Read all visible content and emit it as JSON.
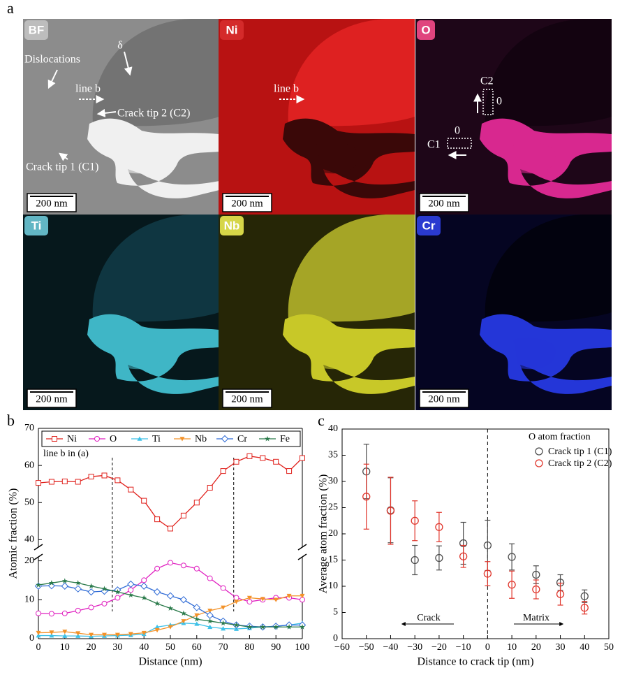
{
  "panel_labels": [
    "a",
    "b",
    "c"
  ],
  "micrographs": [
    {
      "label": "BF",
      "scale_bar": "200 nm",
      "annotations": [
        "Dislocations",
        "δ",
        "line b",
        "Crack tip 2 (C2)",
        "Crack tip 1 (C1)"
      ]
    },
    {
      "label": "Ni",
      "scale_bar": "200 nm",
      "annotations": [
        "line b"
      ]
    },
    {
      "label": "O",
      "scale_bar": "200 nm",
      "annotations": [
        "C2",
        "0",
        "0",
        "C1"
      ]
    },
    {
      "label": "Ti",
      "scale_bar": "200 nm"
    },
    {
      "label": "Nb",
      "scale_bar": "200 nm"
    },
    {
      "label": "Cr",
      "scale_bar": "200 nm"
    }
  ],
  "chart_data": [
    {
      "type": "line",
      "annotation": "line b in (a)",
      "xlabel": "Distance (nm)",
      "ylabel": "Atomic fraction (%)",
      "x": [
        0,
        5,
        10,
        15,
        20,
        25,
        30,
        35,
        40,
        45,
        50,
        55,
        60,
        65,
        70,
        75,
        80,
        85,
        90,
        95,
        100
      ],
      "xlim": [
        0,
        100
      ],
      "xticks": [
        0,
        10,
        20,
        30,
        40,
        50,
        60,
        70,
        80,
        90,
        100
      ],
      "ylim": [
        0,
        70
      ],
      "ybreak": [
        21,
        38
      ],
      "yticks": [
        0,
        10,
        20,
        40,
        50,
        60,
        70
      ],
      "reference_lines": [
        28,
        74
      ],
      "legend": "top",
      "series": [
        {
          "name": "Ni",
          "color": "#e0201b",
          "marker": "square",
          "values": [
            55.3,
            55.6,
            55.7,
            55.6,
            57.0,
            57.3,
            56.0,
            53.5,
            50.5,
            45.5,
            43.0,
            46.5,
            50.0,
            54.0,
            58.5,
            61.0,
            62.5,
            62.0,
            61.0,
            58.5,
            62.0
          ]
        },
        {
          "name": "O",
          "color": "#e020c0",
          "marker": "circle",
          "values": [
            6.5,
            6.4,
            6.5,
            7.2,
            8.0,
            9.0,
            10.5,
            12.5,
            15.0,
            18.0,
            19.5,
            18.8,
            18.0,
            15.5,
            13.0,
            10.5,
            9.5,
            10.0,
            10.5,
            10.5,
            10.0
          ]
        },
        {
          "name": "Ti",
          "color": "#3ec1e8",
          "marker": "triangle-up",
          "values": [
            0.8,
            0.8,
            0.7,
            0.7,
            0.6,
            0.7,
            0.8,
            0.9,
            1.2,
            3.0,
            3.5,
            4.0,
            3.8,
            3.0,
            2.6,
            2.5,
            2.7,
            3.0,
            3.2,
            3.5,
            4.0
          ]
        },
        {
          "name": "Nb",
          "color": "#f39229",
          "marker": "triangle-down",
          "values": [
            1.5,
            1.6,
            1.8,
            1.4,
            1.0,
            1.0,
            1.0,
            1.2,
            1.5,
            2.2,
            3.0,
            4.5,
            6.0,
            7.2,
            8.0,
            9.5,
            10.5,
            10.2,
            10.0,
            11.0,
            11.0
          ]
        },
        {
          "name": "Cr",
          "color": "#2f6bd6",
          "marker": "diamond",
          "values": [
            13.5,
            13.6,
            13.5,
            12.8,
            12.0,
            12.2,
            12.5,
            14.0,
            13.5,
            12.0,
            11.0,
            10.0,
            8.0,
            6.0,
            4.5,
            3.5,
            3.2,
            3.0,
            3.2,
            3.5,
            3.5
          ]
        },
        {
          "name": "Fe",
          "color": "#2a7a4a",
          "marker": "star",
          "values": [
            13.8,
            14.3,
            14.8,
            14.3,
            13.5,
            12.8,
            12.0,
            11.2,
            10.5,
            9.0,
            7.8,
            6.5,
            5.0,
            4.5,
            4.0,
            3.5,
            3.0,
            3.0,
            3.0,
            3.0,
            3.0
          ]
        }
      ]
    },
    {
      "type": "scatter",
      "xlabel": "Distance to crack tip (nm)",
      "ylabel": "Average atom fraction (%)",
      "legend_title": "O atom fraction",
      "annotations": [
        "Crack",
        "Matrix"
      ],
      "x": [
        -50,
        -40,
        -30,
        -20,
        -10,
        0,
        10,
        20,
        30,
        40
      ],
      "xlim": [
        -60,
        50
      ],
      "xticks": [
        {
          "value": -60,
          "label": "−60"
        },
        {
          "value": -50,
          "label": "−50"
        },
        {
          "value": -40,
          "label": "−40"
        },
        {
          "value": -30,
          "label": "−30"
        },
        {
          "value": -20,
          "label": "−20"
        },
        {
          "value": -10,
          "label": "−10"
        },
        0,
        10,
        20,
        30,
        40,
        50
      ],
      "ylim": [
        0,
        40
      ],
      "yticks": [
        0,
        5,
        10,
        15,
        20,
        25,
        30,
        35,
        40
      ],
      "reference_lines": [
        0
      ],
      "legend": "upper right",
      "series": [
        {
          "name": "Crack tip 1 (C1)",
          "color": "#4d4d4d",
          "marker": "circle",
          "values": [
            31.9,
            24.5,
            15.0,
            15.4,
            18.2,
            17.8,
            15.6,
            12.2,
            10.7,
            8.1
          ],
          "errors": [
            5.2,
            6.2,
            2.8,
            2.3,
            4.0,
            4.8,
            2.5,
            1.7,
            1.5,
            1.2
          ]
        },
        {
          "name": "Crack tip 2 (C2)",
          "color": "#e0342a",
          "marker": "circle",
          "values": [
            27.1,
            24.4,
            22.5,
            21.3,
            15.7,
            12.4,
            10.3,
            9.4,
            8.5,
            5.9
          ],
          "errors": [
            6.2,
            6.4,
            3.8,
            2.8,
            2.1,
            2.3,
            2.6,
            1.8,
            2.1,
            1.2
          ]
        }
      ]
    }
  ]
}
